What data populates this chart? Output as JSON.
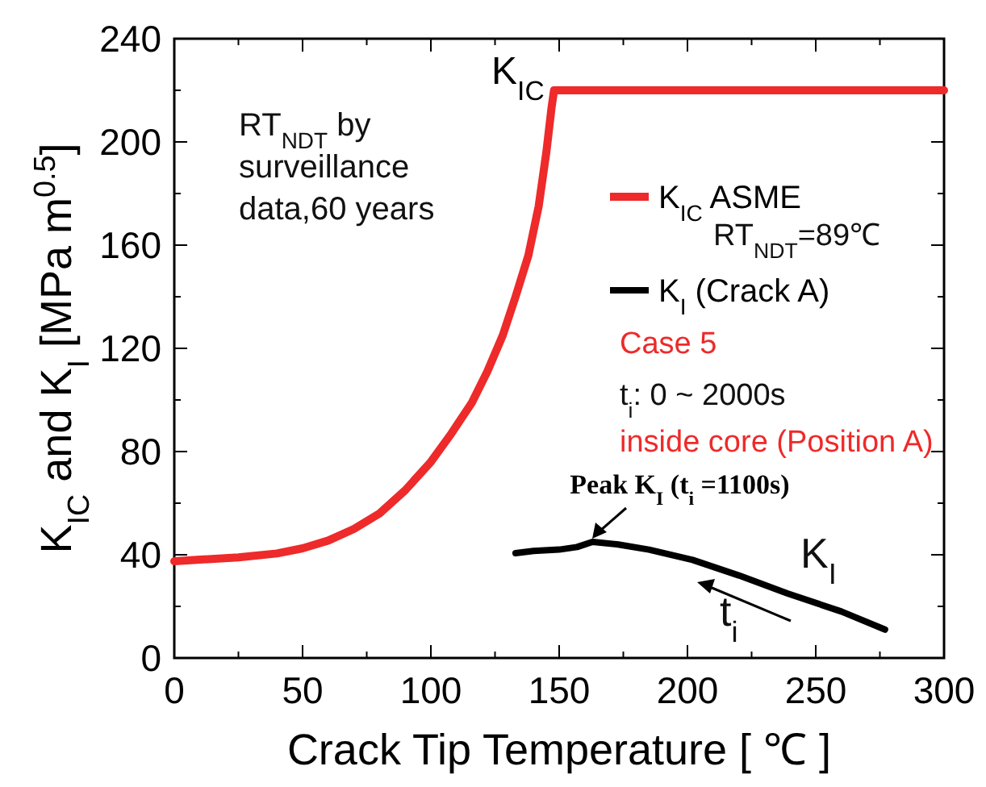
{
  "chart_data": {
    "type": "line",
    "xlabel": "Crack Tip Temperature [ ℃ ]",
    "ylabel": "K$_{IC}$ and K$_{I}$ [MPa m$^{0.5}$]",
    "xlim": [
      0,
      300
    ],
    "xticks": [
      0,
      50,
      100,
      150,
      200,
      250,
      300
    ],
    "ylim": [
      0,
      240
    ],
    "yticks": [
      0,
      40,
      80,
      120,
      160,
      200,
      240
    ],
    "grid": false,
    "legend": "right",
    "line_style": "solid",
    "series": [
      {
        "name": "K$_{IC}$ ASME",
        "color": "#ee2a2a",
        "x": [
          0,
          25,
          40,
          50,
          60,
          70,
          80,
          90,
          100,
          108,
          116,
          122,
          128,
          133,
          138,
          142,
          145,
          147,
          148,
          300
        ],
        "values": [
          37.5,
          39,
          40.5,
          42.5,
          45.5,
          50,
          56,
          65,
          76,
          87,
          99,
          111,
          125,
          140,
          156,
          175,
          196,
          213,
          220,
          220
        ]
      },
      {
        "name": "K$_{I}$ (Crack A)",
        "color": "#000000",
        "x": [
          133,
          140,
          150,
          157,
          163,
          173,
          185,
          202,
          220,
          239,
          260,
          277
        ],
        "values": [
          40.6,
          41.5,
          42,
          43,
          45,
          44,
          42,
          38,
          32,
          25,
          18,
          11
        ]
      }
    ],
    "annotations": [
      "RT$_{NDT}$ by surveillance data,60 years",
      "RT$_{NDT}$=89℃",
      "Case 5",
      "t$_{i}$: 0 ~ 2000s",
      "inside core (Position A)",
      {
        "text": "K$_{IC}$",
        "x": 148,
        "y": 220
      },
      {
        "text": "Peak K$_{I}$ (t$_{i}$ =1100s)",
        "x": 163,
        "y": 45
      },
      "K$_{I}$",
      "t$_{i}$"
    ]
  }
}
